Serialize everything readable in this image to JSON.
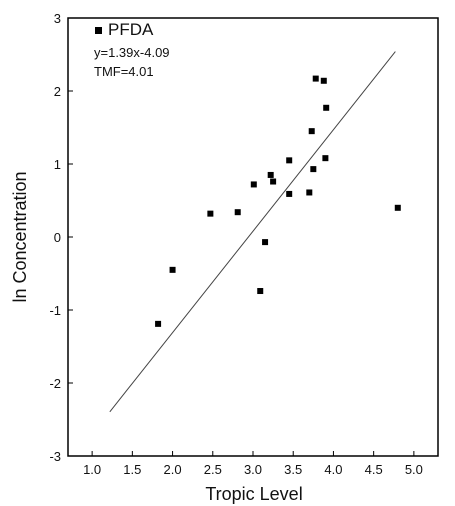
{
  "chart_data": {
    "type": "scatter",
    "title": "",
    "xlabel": "Tropic Level",
    "ylabel": "ln Concentration",
    "xlim": [
      0.7,
      5.3
    ],
    "ylim": [
      -3,
      3
    ],
    "xticks": [
      1.0,
      1.5,
      2.0,
      2.5,
      3.0,
      3.5,
      4.0,
      4.5,
      5.0
    ],
    "xtick_labels": [
      "1.0",
      "1.5",
      "2.0",
      "2.5",
      "3.0",
      "3.5",
      "4.0",
      "4.5",
      "5.0"
    ],
    "yticks": [
      -3,
      -2,
      -1,
      0,
      1,
      2,
      3
    ],
    "ytick_labels": [
      "-3",
      "-2",
      "-1",
      "0",
      "1",
      "2",
      "3"
    ],
    "grid": false,
    "legend": {
      "position": "top-left",
      "entries": [
        "PFDA"
      ]
    },
    "series": [
      {
        "name": "PFDA",
        "marker": "square",
        "color": "#000000",
        "points": [
          {
            "x": 1.82,
            "y": -1.19
          },
          {
            "x": 2.0,
            "y": -0.45
          },
          {
            "x": 2.47,
            "y": 0.32
          },
          {
            "x": 2.81,
            "y": 0.34
          },
          {
            "x": 3.01,
            "y": 0.72
          },
          {
            "x": 3.09,
            "y": -0.74
          },
          {
            "x": 3.15,
            "y": -0.07
          },
          {
            "x": 3.22,
            "y": 0.85
          },
          {
            "x": 3.25,
            "y": 0.76
          },
          {
            "x": 3.45,
            "y": 1.05
          },
          {
            "x": 3.45,
            "y": 0.59
          },
          {
            "x": 3.7,
            "y": 0.61
          },
          {
            "x": 3.73,
            "y": 1.45
          },
          {
            "x": 3.75,
            "y": 0.93
          },
          {
            "x": 3.78,
            "y": 2.17
          },
          {
            "x": 3.88,
            "y": 2.14
          },
          {
            "x": 3.9,
            "y": 1.08
          },
          {
            "x": 3.91,
            "y": 1.77
          },
          {
            "x": 4.8,
            "y": 0.4
          }
        ]
      }
    ],
    "fit_line": {
      "slope": 1.39,
      "intercept": -4.09,
      "x_range": [
        1.22,
        4.77
      ],
      "color": "#444444"
    },
    "annotations": [
      "y=1.39x-4.09",
      "TMF=4.01"
    ]
  }
}
